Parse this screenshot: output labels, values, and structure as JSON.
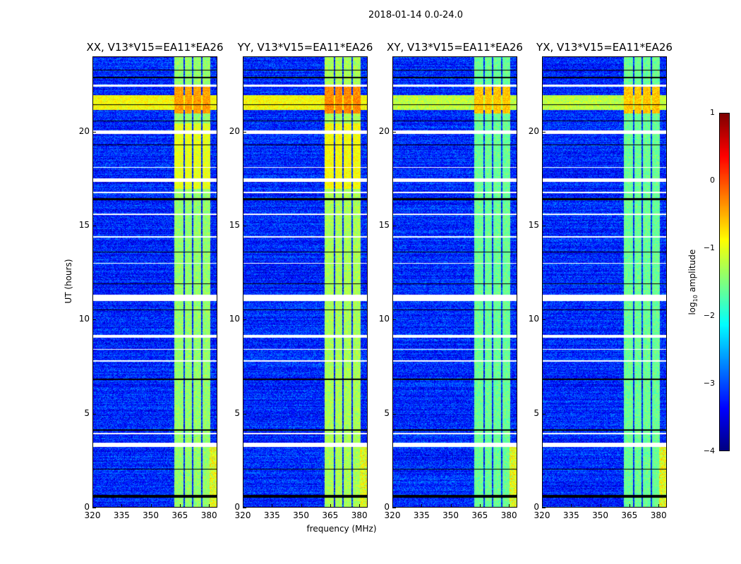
{
  "chart_data": {
    "type": "heatmap",
    "title": "2018-01-14 0.0-24.0",
    "xlabel": "frequency (MHz)",
    "ylabel": "UT (hours)",
    "xlim": [
      320,
      384.3
    ],
    "ylim": [
      0,
      24
    ],
    "xticks": [
      320,
      335,
      350,
      365,
      380
    ],
    "yticks": [
      0,
      5,
      10,
      15,
      20
    ],
    "panels": [
      {
        "title": "XX, V13*V15=EA11*EA26",
        "band_level": -1.4
      },
      {
        "title": "YY, V13*V15=EA11*EA26",
        "band_level": -1.3
      },
      {
        "title": "XY, V13*V15=EA11*EA26",
        "band_level": -1.6
      },
      {
        "title": "YX, V13*V15=EA11*EA26",
        "band_level": -1.6
      }
    ],
    "background_level": -3.2,
    "bright_channels_mhz": [
      [
        362,
        366.8
      ],
      [
        367.4,
        371.4
      ],
      [
        372,
        376
      ],
      [
        376.6,
        380.8
      ]
    ],
    "rfi_band_hours": [
      21.2,
      22.0
    ],
    "flagged_hours_white": [
      [
        3.2,
        3.45
      ],
      [
        7.75,
        7.85
      ],
      [
        9.05,
        9.2
      ],
      [
        11.0,
        11.35
      ],
      [
        16.75,
        16.85
      ],
      [
        17.35,
        17.55
      ],
      [
        19.9,
        20.1
      ],
      [
        22.45,
        22.55
      ],
      [
        8.4,
        8.45
      ],
      [
        3.9,
        3.95
      ],
      [
        13.0,
        13.05
      ],
      [
        14.4,
        14.45
      ],
      [
        15.6,
        15.65
      ],
      [
        18.1,
        18.15
      ]
    ],
    "flagged_hours_black": [
      [
        0.5,
        0.65
      ],
      [
        2.0,
        2.05
      ],
      [
        4.1,
        4.15
      ],
      [
        6.8,
        6.85
      ],
      [
        10.5,
        10.55
      ],
      [
        11.9,
        11.95
      ],
      [
        13.6,
        13.65
      ],
      [
        16.4,
        16.5
      ],
      [
        19.3,
        19.35
      ],
      [
        20.6,
        20.65
      ],
      [
        21.45,
        21.5
      ],
      [
        22.9,
        22.95
      ],
      [
        23.3,
        23.35
      ]
    ],
    "colorbar": {
      "label": "log10 amplitude",
      "label_main": "log",
      "label_sub": "10",
      "label_rest": " amplitude",
      "range": [
        -4,
        1
      ],
      "ticks": [
        "1",
        "0",
        "−1",
        "−2",
        "−3",
        "−4"
      ],
      "cmap": "jet"
    }
  }
}
